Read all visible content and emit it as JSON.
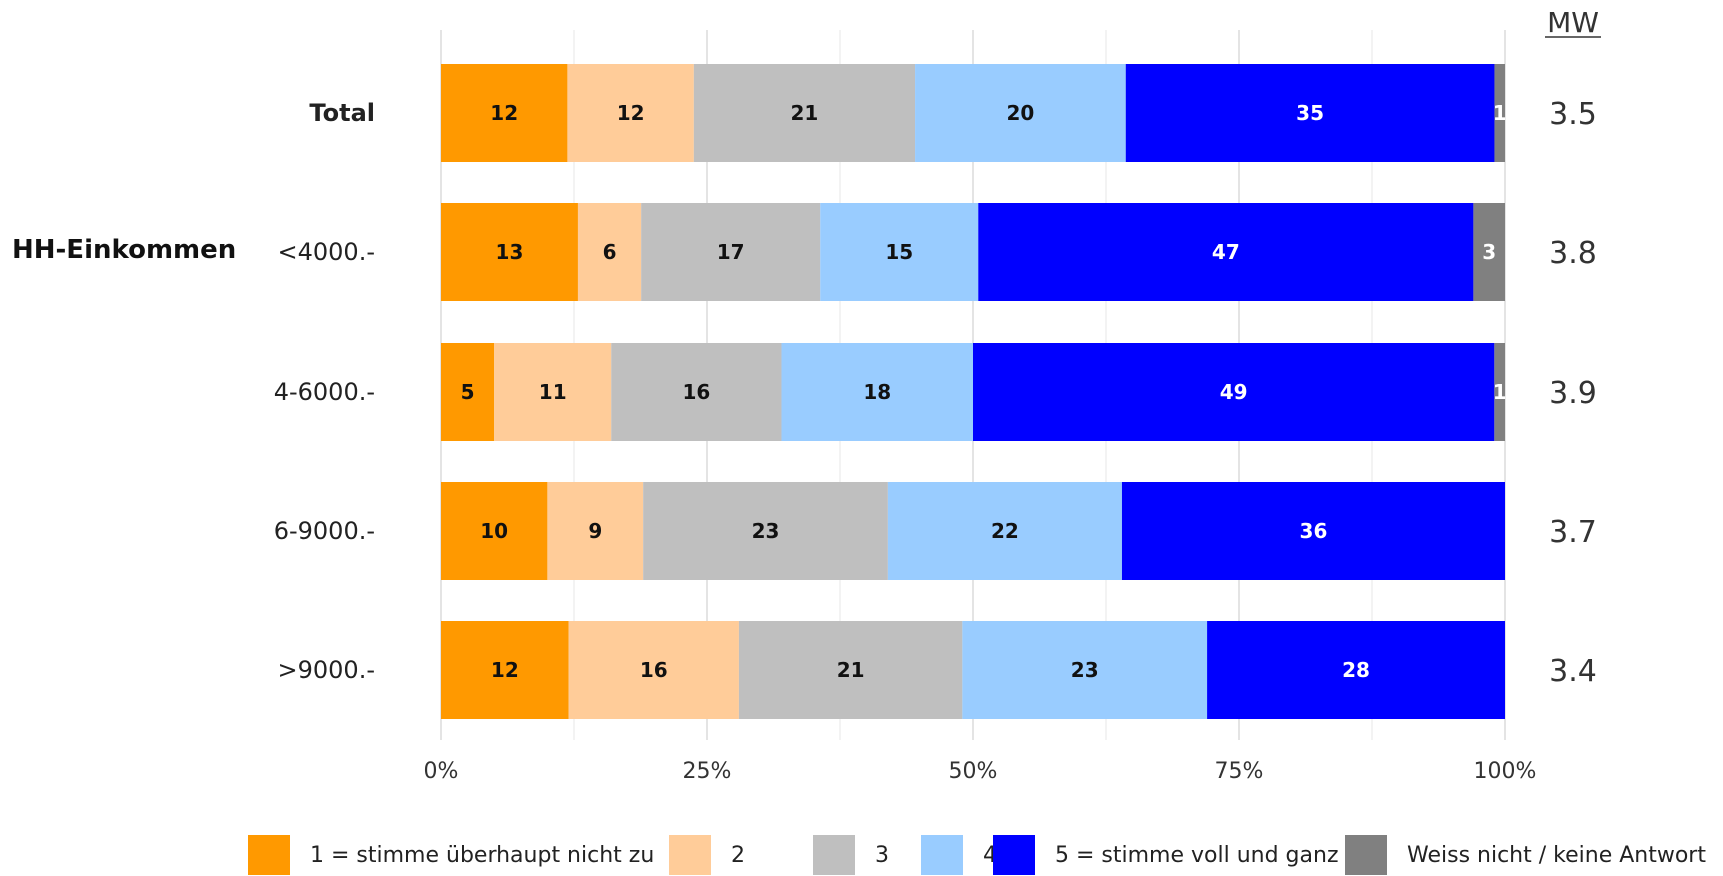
{
  "chart_data": {
    "type": "bar",
    "orientation": "horizontal",
    "stacked": true,
    "group_label": "HH-Einkommen",
    "mw_header": "MW",
    "rows": [
      {
        "label": "Total",
        "bold": true,
        "values": [
          12,
          12,
          21,
          20,
          35,
          1
        ],
        "mw": "3.5"
      },
      {
        "label": "<4000.-",
        "bold": false,
        "values": [
          13,
          6,
          17,
          15,
          47,
          3
        ],
        "mw": "3.8"
      },
      {
        "label": "4-6000.-",
        "bold": false,
        "values": [
          5,
          11,
          16,
          18,
          49,
          1
        ],
        "mw": "3.9"
      },
      {
        "label": "6-9000.-",
        "bold": false,
        "values": [
          10,
          9,
          23,
          22,
          36,
          0
        ],
        "mw": "3.7"
      },
      {
        "label": ">9000.-",
        "bold": false,
        "values": [
          12,
          16,
          21,
          23,
          28,
          0
        ],
        "mw": "3.4"
      }
    ],
    "series": [
      {
        "name": "1 = stimme überhaupt nicht zu",
        "color": "#FF9900",
        "label_color": "#111111"
      },
      {
        "name": "2",
        "color": "#FFCC99",
        "label_color": "#111111"
      },
      {
        "name": "3",
        "color": "#BFBFBF",
        "label_color": "#111111"
      },
      {
        "name": "4",
        "color": "#99CCFF",
        "label_color": "#111111"
      },
      {
        "name": "5 = stimme voll und ganz zu",
        "color": "#0000FF",
        "label_color": "#FFFFFF"
      },
      {
        "name": "Weiss nicht / keine Antwort",
        "color": "#808080",
        "label_color": "#FFFFFF"
      }
    ],
    "x_ticks": [
      "0%",
      "25%",
      "50%",
      "75%",
      "100%"
    ],
    "xlim": [
      0,
      100
    ],
    "grid": true,
    "legend_position": "bottom"
  }
}
